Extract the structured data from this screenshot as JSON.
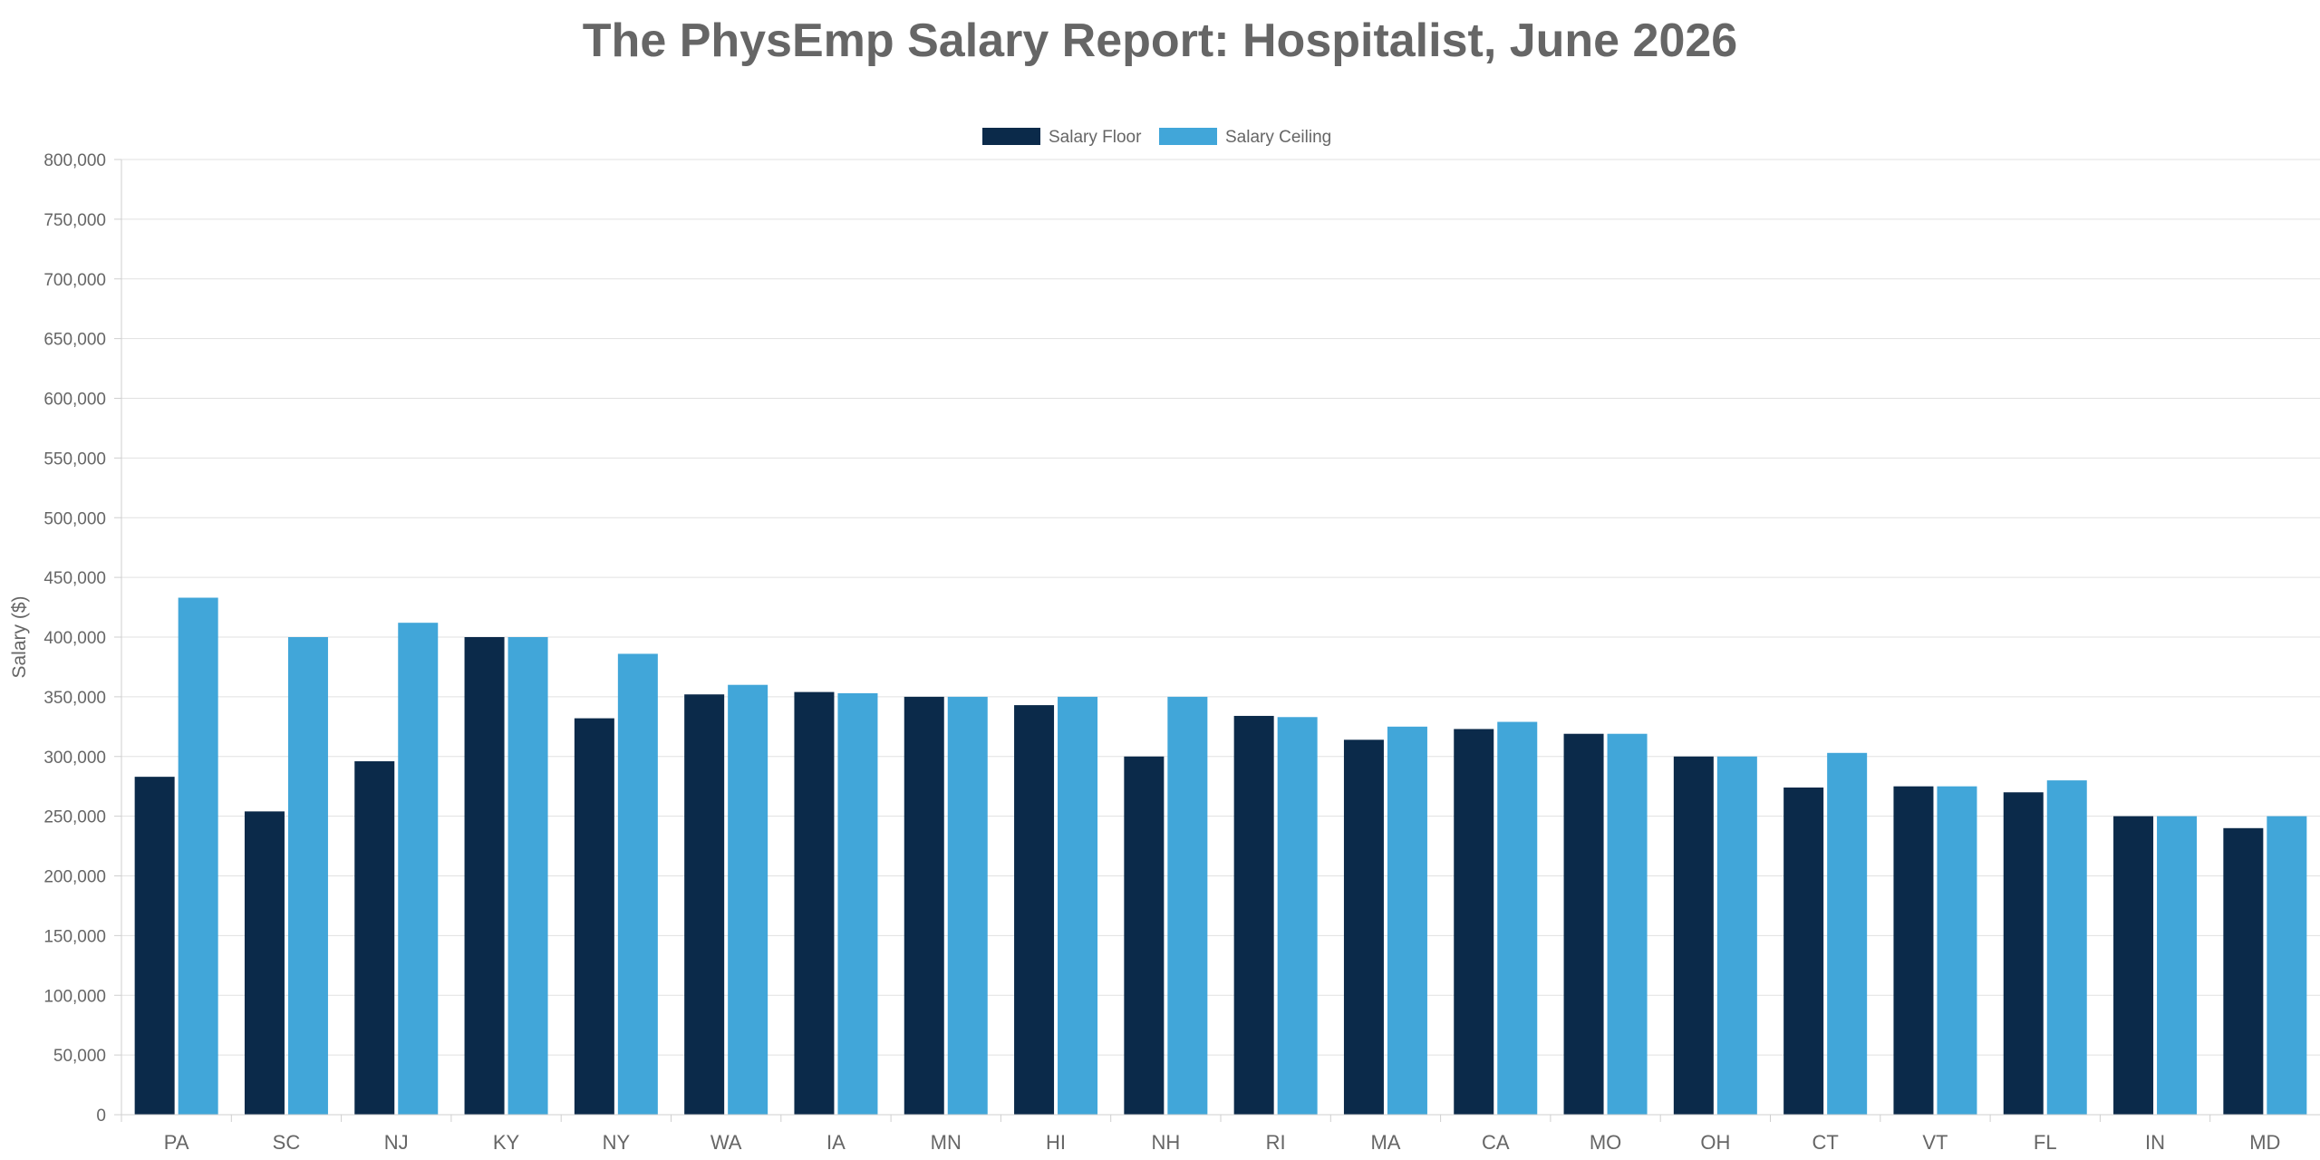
{
  "chart_data": {
    "type": "bar",
    "title": "The PhysEmp Salary Report: Hospitalist, June 2026",
    "xlabel": "",
    "ylabel": "Salary ($)",
    "ylim": [
      0,
      800000
    ],
    "yticks": [
      0,
      50000,
      100000,
      150000,
      200000,
      250000,
      300000,
      350000,
      400000,
      450000,
      500000,
      550000,
      600000,
      650000,
      700000,
      750000,
      800000
    ],
    "ytick_labels": [
      "0",
      "50,000",
      "100,000",
      "150,000",
      "200,000",
      "250,000",
      "300,000",
      "350,000",
      "400,000",
      "450,000",
      "500,000",
      "550,000",
      "600,000",
      "650,000",
      "700,000",
      "750,000",
      "800,000"
    ],
    "grid": true,
    "legend_position": "top-center",
    "categories": [
      "PA",
      "SC",
      "NJ",
      "KY",
      "NY",
      "WA",
      "IA",
      "MN",
      "HI",
      "NH",
      "RI",
      "MA",
      "CA",
      "MO",
      "OH",
      "CT",
      "VT",
      "FL",
      "IN",
      "MD"
    ],
    "series": [
      {
        "name": "Salary Floor",
        "color": "#0b2a4a",
        "values": [
          283000,
          254000,
          296000,
          400000,
          332000,
          352000,
          354000,
          350000,
          343000,
          300000,
          334000,
          314000,
          323000,
          319000,
          300000,
          274000,
          275000,
          270000,
          250000,
          240000
        ]
      },
      {
        "name": "Salary Ceiling",
        "color": "#41a6d9",
        "values": [
          433000,
          400000,
          412000,
          400000,
          386000,
          360000,
          353000,
          350000,
          350000,
          350000,
          333000,
          325000,
          329000,
          319000,
          300000,
          303000,
          275000,
          280000,
          250000,
          250000
        ]
      }
    ]
  }
}
